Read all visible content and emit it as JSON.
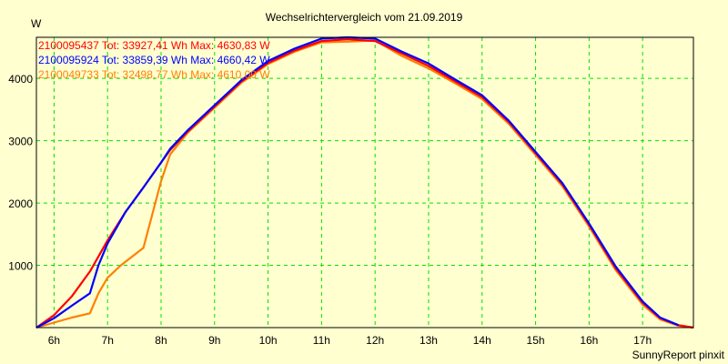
{
  "chart_data": {
    "type": "line",
    "title": "Wechselrichtervergleich vom 21.09.2019",
    "ylabel": "W",
    "xlabel": "",
    "footer": "SunnyReport pinxit",
    "xlim": [
      5.67,
      17.95
    ],
    "ylim": [
      0,
      4660
    ],
    "grid": true,
    "legend_position": "top-left",
    "x_ticks": [
      6,
      7,
      8,
      9,
      10,
      11,
      12,
      13,
      14,
      15,
      16,
      17
    ],
    "x_tick_labels": [
      "6h",
      "7h",
      "8h",
      "9h",
      "10h",
      "11h",
      "12h",
      "13h",
      "14h",
      "15h",
      "16h",
      "17h"
    ],
    "y_ticks": [
      1000,
      2000,
      3000,
      4000
    ],
    "y_tick_labels": [
      "1000",
      "2000",
      "3000",
      "4000"
    ],
    "series": [
      {
        "name": "2100095437 Tot: 33927,41 Wh Max: 4630,83 W",
        "color": "#ff0000",
        "x": [
          5.67,
          6.0,
          6.33,
          6.67,
          7.0,
          7.33,
          7.67,
          8.0,
          8.17,
          8.5,
          9.0,
          9.5,
          10.0,
          10.5,
          11.0,
          11.5,
          12.0,
          12.5,
          13.0,
          13.5,
          14.0,
          14.5,
          15.0,
          15.5,
          16.0,
          16.5,
          17.0,
          17.33,
          17.67,
          17.95
        ],
        "y": [
          0,
          200,
          500,
          900,
          1400,
          1850,
          2250,
          2650,
          2850,
          3150,
          3550,
          3950,
          4250,
          4450,
          4600,
          4630,
          4600,
          4400,
          4200,
          3950,
          3700,
          3300,
          2800,
          2300,
          1650,
          950,
          400,
          150,
          40,
          0
        ]
      },
      {
        "name": "2100095924 Tot: 33859,39 Wh Max: 4660,42 W",
        "color": "#0000ff",
        "x": [
          5.67,
          6.0,
          6.33,
          6.67,
          6.83,
          7.0,
          7.33,
          7.67,
          8.0,
          8.17,
          8.5,
          9.0,
          9.5,
          10.0,
          10.5,
          11.0,
          11.5,
          12.0,
          12.5,
          13.0,
          13.5,
          14.0,
          14.5,
          15.0,
          15.5,
          16.0,
          16.5,
          17.0,
          17.33,
          17.67
        ],
        "y": [
          0,
          150,
          350,
          550,
          1000,
          1350,
          1850,
          2250,
          2650,
          2870,
          3170,
          3570,
          3970,
          4280,
          4480,
          4640,
          4660,
          4640,
          4430,
          4240,
          3980,
          3730,
          3320,
          2820,
          2320,
          1670,
          980,
          420,
          160,
          40
        ]
      },
      {
        "name": "2100049733 Tot: 32498,77 Wh Max: 4610,00 W",
        "color": "#ff8000",
        "x": [
          5.67,
          6.0,
          6.33,
          6.67,
          6.83,
          7.0,
          7.25,
          7.67,
          8.0,
          8.17,
          8.5,
          9.0,
          9.5,
          10.0,
          10.5,
          11.0,
          11.5,
          12.0,
          12.5,
          13.0,
          13.5,
          14.0,
          14.5,
          15.0,
          15.5,
          16.0,
          16.5,
          17.0,
          17.33,
          17.67,
          17.95
        ],
        "y": [
          0,
          80,
          160,
          230,
          550,
          800,
          1000,
          1280,
          2350,
          2780,
          3130,
          3530,
          3930,
          4230,
          4430,
          4580,
          4590,
          4610,
          4360,
          4160,
          3920,
          3670,
          3270,
          2770,
          2270,
          1620,
          920,
          370,
          130,
          30,
          0
        ]
      }
    ]
  }
}
